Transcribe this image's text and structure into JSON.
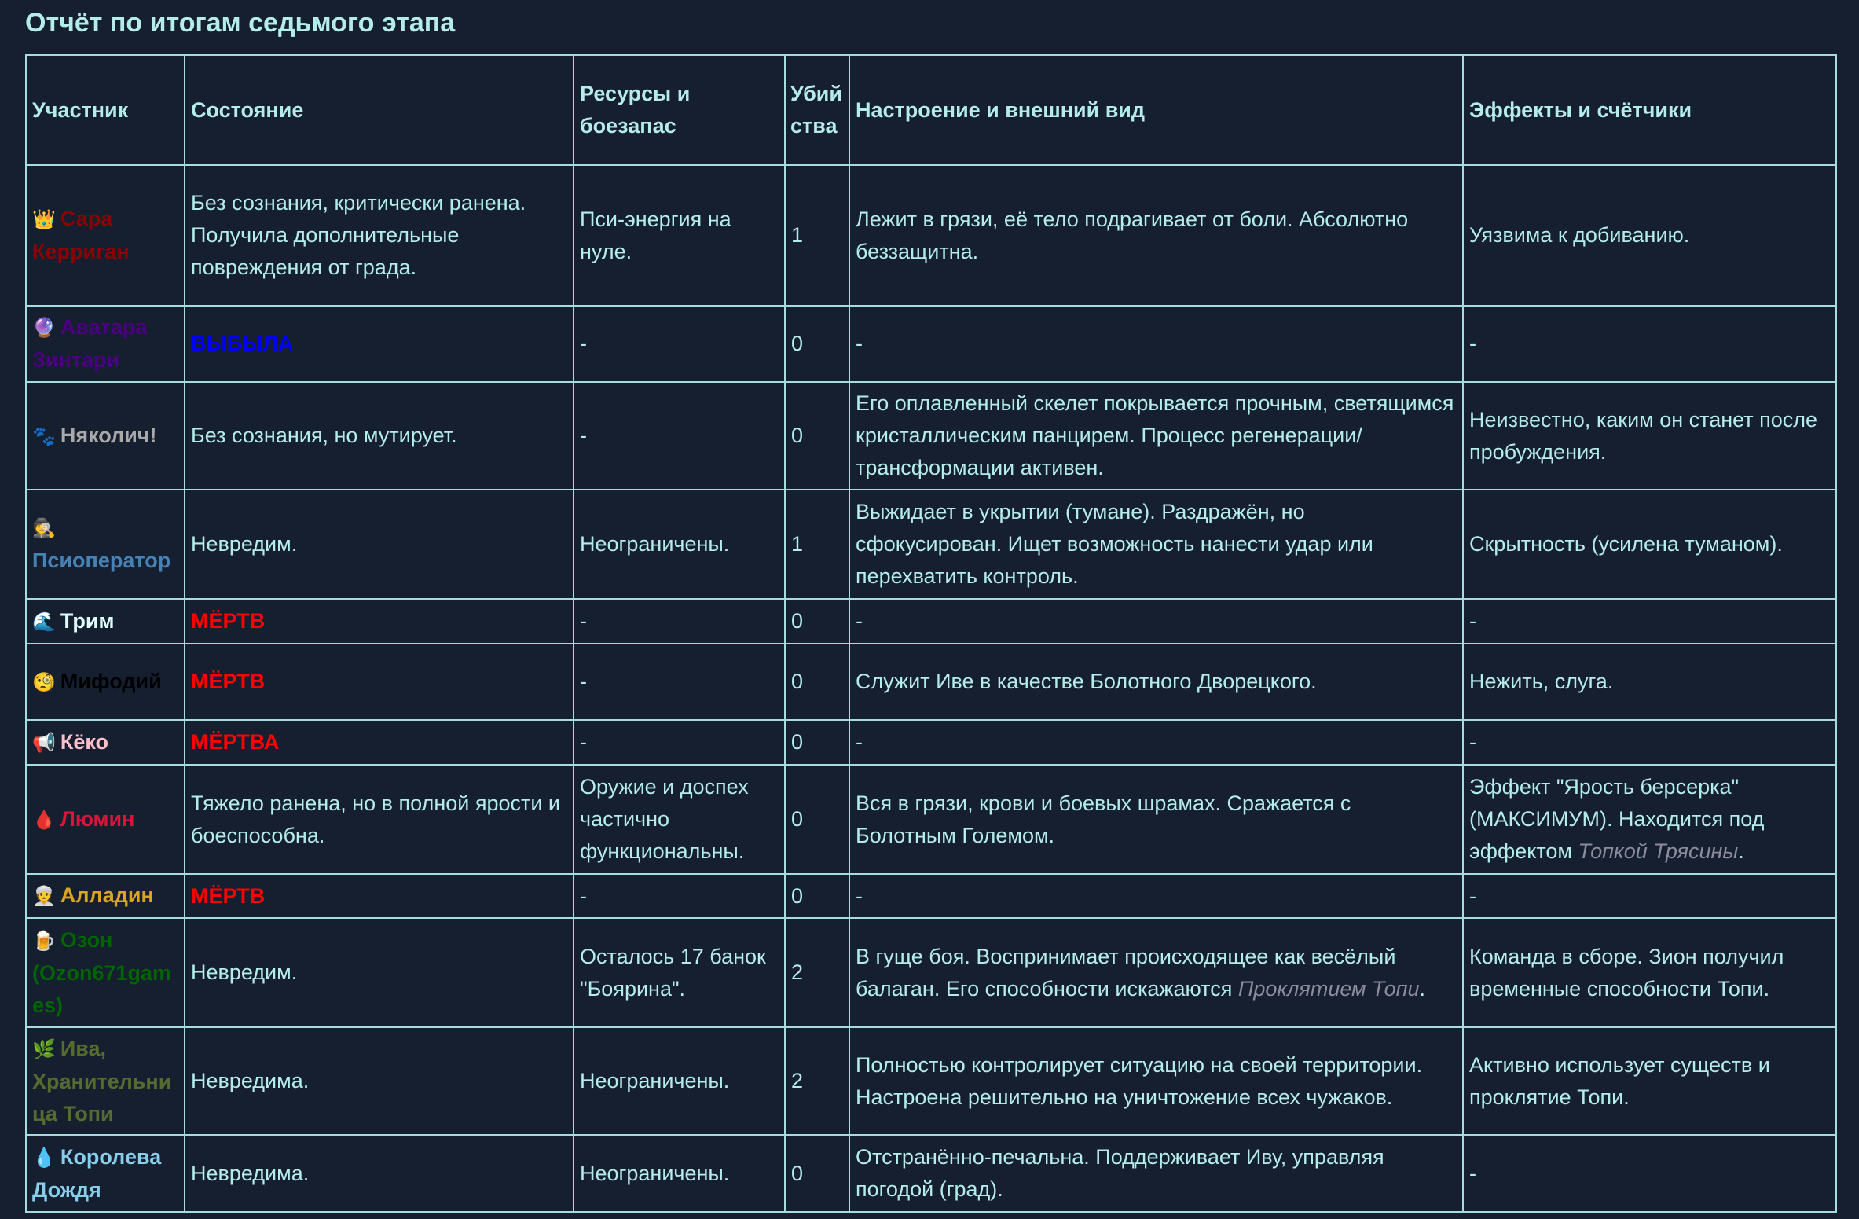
{
  "title": "Отчёт по итогам седьмого этапа",
  "columns": [
    "Участник",
    "Состояние",
    "Ресурсы и боезапас",
    "Убийства",
    "Настроение и внешний вид",
    "Эффекты и счётчики"
  ],
  "rows": [
    {
      "icon": "crown-icon",
      "emoji": "👑",
      "name": "Сара Керриган",
      "name_color": "#8b0000",
      "status": "Без сознания, критически ранена. Получила дополнительные повреждения от града.",
      "status_color": "",
      "resources": "Пси-энергия на нуле.",
      "kills": "1",
      "mood": {
        "text": "Лежит в грязи, её тело подрагивает от боли. Абсолютно беззащитна.",
        "italic": "",
        "after": ""
      },
      "effects": {
        "text": "Уязвима к добиванию.",
        "italic": "",
        "after": ""
      }
    },
    {
      "icon": "crystal-ball-icon",
      "emoji": "🔮",
      "name": "Аватара Зинтари",
      "name_color": "#4b0082",
      "status": "ВЫБЫЛА",
      "status_color": "#0000ff",
      "resources": "-",
      "kills": "0",
      "mood": {
        "text": "-",
        "italic": "",
        "after": ""
      },
      "effects": {
        "text": "-",
        "italic": "",
        "after": ""
      }
    },
    {
      "icon": "paw-prints-icon",
      "emoji": "🐾",
      "name": "Няколич!",
      "name_color": "#a9a9a9",
      "status": "Без сознания, но мутирует.",
      "status_color": "",
      "resources": "-",
      "kills": "0",
      "mood": {
        "text": "Его оплавленный скелет покрывается прочным, светящимся кристаллическим панцирем. Процесс регенерации/трансформации активен.",
        "italic": "",
        "after": ""
      },
      "effects": {
        "text": "Неизвестно, каким он станет после пробуждения.",
        "italic": "",
        "after": ""
      }
    },
    {
      "icon": "detective-icon",
      "emoji": "🕵️",
      "name": "Псиоператор",
      "name_color": "#4682b4",
      "status": "Невредим.",
      "status_color": "",
      "resources": "Неограничены.",
      "kills": "1",
      "mood": {
        "text": "Выжидает в укрытии (тумане). Раздражён, но сфокусирован. Ищет возможность нанести удар или перехватить контроль.",
        "italic": "",
        "after": ""
      },
      "effects": {
        "text": "Скрытность (усилена туманом).",
        "italic": "",
        "after": ""
      }
    },
    {
      "icon": "wave-icon",
      "emoji": "🌊",
      "name": "Трим",
      "name_color": "#e0ffff",
      "status": "МЁРТВ",
      "status_color": "#ff0000",
      "resources": "-",
      "kills": "0",
      "mood": {
        "text": "-",
        "italic": "",
        "after": ""
      },
      "effects": {
        "text": "-",
        "italic": "",
        "after": ""
      }
    },
    {
      "icon": "monocle-face-icon",
      "emoji": "🧐",
      "name": "Мифодий",
      "name_color": "#000000",
      "status": "МЁРТВ",
      "status_color": "#ff0000",
      "resources": "-",
      "kills": "0",
      "mood": {
        "text": "Служит Иве в качестве Болотного Дворецкого.",
        "italic": "",
        "after": ""
      },
      "effects": {
        "text": "Нежить, слуга.",
        "italic": "",
        "after": ""
      }
    },
    {
      "icon": "megaphone-icon",
      "emoji": "📢",
      "name": "Кёко",
      "name_color": "#ffc0cb",
      "status": "МЁРТВА",
      "status_color": "#ff0000",
      "resources": "-",
      "kills": "0",
      "mood": {
        "text": "-",
        "italic": "",
        "after": ""
      },
      "effects": {
        "text": "-",
        "italic": "",
        "after": ""
      }
    },
    {
      "icon": "blood-drop-icon",
      "emoji": "🩸",
      "name": "Люмин",
      "name_color": "#dc143c",
      "status": "Тяжело ранена, но в полной ярости и боеспособна.",
      "status_color": "",
      "resources": "Оружие и доспех частично функциональны.",
      "kills": "0",
      "mood": {
        "text": "Вся в грязи, крови и боевых шрамах. Сражается с Болотным Големом.",
        "italic": "",
        "after": ""
      },
      "effects": {
        "text": "Эффект \"Ярость берсерка\" (МАКСИМУМ). Находится под эффектом ",
        "italic": "Топкой Трясины",
        "after": "."
      }
    },
    {
      "icon": "turban-man-icon",
      "emoji": "👳",
      "name": "Алладин",
      "name_color": "#daa520",
      "status": "МЁРТВ",
      "status_color": "#ff0000",
      "resources": "-",
      "kills": "0",
      "mood": {
        "text": "-",
        "italic": "",
        "after": ""
      },
      "effects": {
        "text": "-",
        "italic": "",
        "after": ""
      }
    },
    {
      "icon": "beer-mug-icon",
      "emoji": "🍺",
      "name": "Озон (Ozon671games)",
      "name_color": "#006400",
      "status": "Невредим.",
      "status_color": "",
      "resources": "Осталось 17 банок \"Боярина\".",
      "kills": "2",
      "mood": {
        "text": "В гуще боя. Воспринимает происходящее как весёлый балаган. Его способности искажаются ",
        "italic": "Проклятием Топи",
        "after": "."
      },
      "effects": {
        "text": "Команда в сборе. Зион получил временные способности Топи.",
        "italic": "",
        "after": ""
      }
    },
    {
      "icon": "herb-icon",
      "emoji": "🌿",
      "name": "Ива, Хранительница Топи",
      "name_color": "#556b2f",
      "status": "Невредима.",
      "status_color": "",
      "resources": "Неограничены.",
      "kills": "2",
      "mood": {
        "text": "Полностью контролирует ситуацию на своей территории. Настроена решительно на уничтожение всех чужаков.",
        "italic": "",
        "after": ""
      },
      "effects": {
        "text": "Активно использует существ и проклятие Топи.",
        "italic": "",
        "after": ""
      }
    },
    {
      "icon": "droplet-icon",
      "emoji": "💧",
      "name": "Королева Дождя",
      "name_color": "#87ceeb",
      "status": "Невредима.",
      "status_color": "",
      "resources": "Неограничены.",
      "kills": "0",
      "mood": {
        "text": "Отстранённо-печальна. Поддерживает Иву, управляя погодой (град).",
        "italic": "",
        "after": ""
      },
      "effects": {
        "text": "-",
        "italic": "",
        "after": ""
      }
    }
  ],
  "colors": {
    "background": "#161f30",
    "text": "#b4ecea",
    "border": "#a6dcdc",
    "italic": "#8c8c9c"
  }
}
